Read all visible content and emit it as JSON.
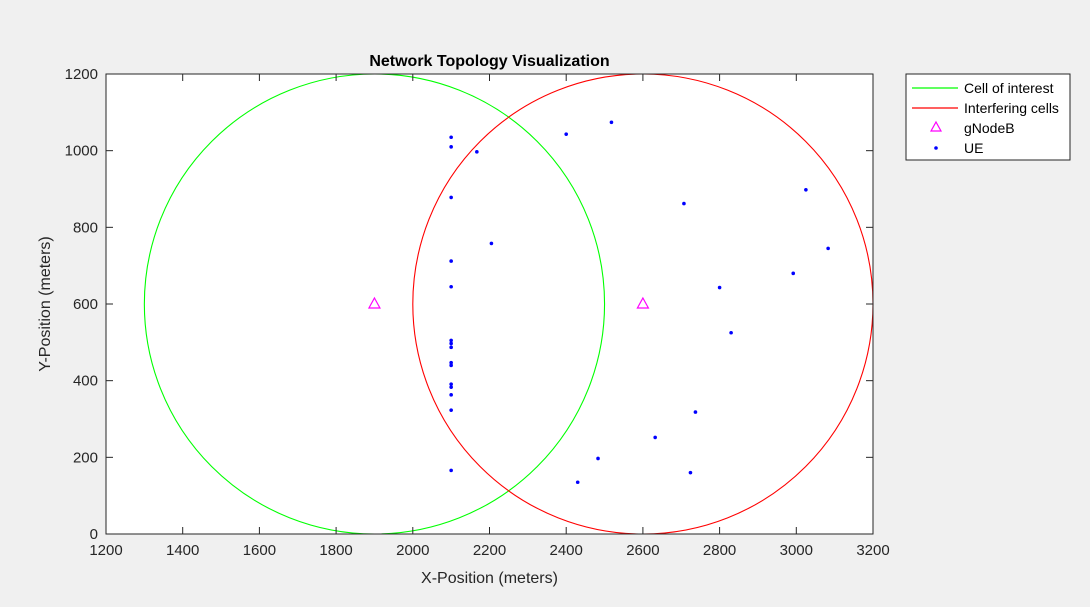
{
  "chart_data": {
    "type": "scatter",
    "title": "Network Topology Visualization",
    "xlabel": "X-Position (meters)",
    "ylabel": "Y-Position (meters)",
    "xlim": [
      1200,
      3200
    ],
    "ylim": [
      0,
      1200
    ],
    "xticks": [
      "1200",
      "1400",
      "1600",
      "1800",
      "2000",
      "2200",
      "2400",
      "2600",
      "2800",
      "3000",
      "3200"
    ],
    "yticks": [
      "0",
      "200",
      "400",
      "600",
      "800",
      "1000",
      "1200"
    ],
    "grid": false,
    "legend_position": "outside-top-right",
    "legend": [
      {
        "label": "Cell of interest",
        "marker": "line",
        "color": "#00ff00"
      },
      {
        "label": "Interfering cells",
        "marker": "line",
        "color": "#ff0000"
      },
      {
        "label": "gNodeB",
        "marker": "triangle",
        "color": "#ff00ff"
      },
      {
        "label": "UE",
        "marker": "dot",
        "color": "#0000ff"
      }
    ],
    "cells": [
      {
        "series": "Cell of interest",
        "center": [
          1900,
          600
        ],
        "radius": 600,
        "color": "#00ff00"
      },
      {
        "series": "Interfering cells",
        "center": [
          2600,
          600
        ],
        "radius": 600,
        "color": "#ff0000"
      }
    ],
    "series": [
      {
        "name": "gNodeB",
        "color": "#ff00ff",
        "points": [
          [
            1900,
            600
          ],
          [
            2600,
            600
          ]
        ]
      },
      {
        "name": "UE",
        "color": "#0000ff",
        "points": [
          [
            2100,
            1035
          ],
          [
            2100,
            1010
          ],
          [
            2167,
            997
          ],
          [
            2100,
            878
          ],
          [
            2205,
            758
          ],
          [
            2100,
            712
          ],
          [
            2100,
            645
          ],
          [
            2100,
            505
          ],
          [
            2100,
            497
          ],
          [
            2100,
            487
          ],
          [
            2100,
            447
          ],
          [
            2100,
            440
          ],
          [
            2100,
            391
          ],
          [
            2100,
            383
          ],
          [
            2100,
            363
          ],
          [
            2100,
            323
          ],
          [
            2100,
            166
          ],
          [
            2400,
            1043
          ],
          [
            2518,
            1074
          ],
          [
            2707,
            862
          ],
          [
            3025,
            898
          ],
          [
            3083,
            745
          ],
          [
            2992,
            680
          ],
          [
            2800,
            643
          ],
          [
            2830,
            525
          ],
          [
            2737,
            318
          ],
          [
            2632,
            252
          ],
          [
            2483,
            197
          ],
          [
            2724,
            160
          ],
          [
            2430,
            135
          ]
        ]
      }
    ]
  }
}
